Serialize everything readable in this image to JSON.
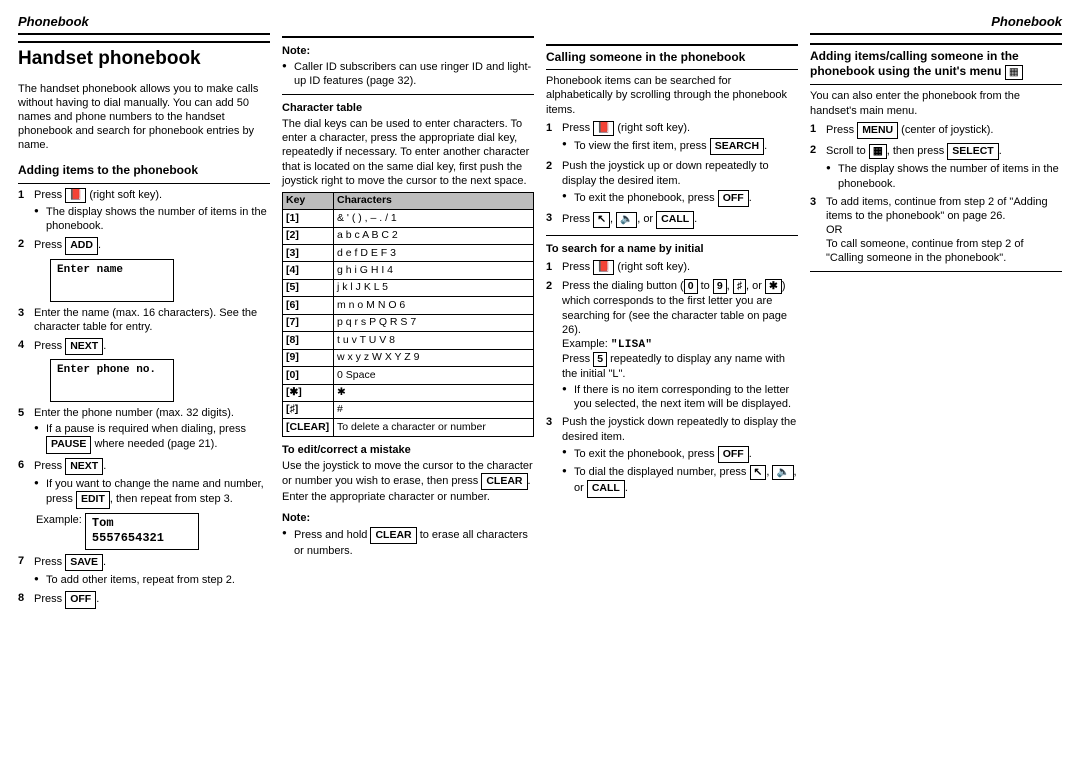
{
  "header": {
    "left": "Phonebook",
    "right": "Phonebook"
  },
  "col1": {
    "title": "Handset phonebook",
    "intro": "The handset phonebook allows you to make calls without having to dial manually. You can add 50 names and phone numbers to the handset phonebook and search for phonebook entries by name.",
    "sec1_title": "Adding items to the phonebook",
    "s1": "Press",
    "s1_key": "📕",
    "s1_after": "(right soft key).",
    "s1_b1": "The display shows the number of items in the phonebook.",
    "s2": "Press",
    "s2_key": "ADD",
    "box_enter_name": "Enter name",
    "s3": "Enter the name (max. 16 characters). See the character table for entry.",
    "s4": "Press",
    "s4_key": "NEXT",
    "box_enter_phone": "Enter phone no.",
    "s5": "Enter the phone number (max. 32 digits).",
    "s5_b1a": "If a pause is required when dialing, press",
    "s5_b1_key": "PAUSE",
    "s5_b1b": "where needed (page 21).",
    "s6": "Press",
    "s6_key": "NEXT",
    "s6_b1a": "If you want to change the name and number, press",
    "s6_b1_key": "EDIT",
    "s6_b1b": ", then repeat from step 3.",
    "s6_example_label": "Example:",
    "s6_example_name": "Tom",
    "s6_example_num": "5557654321",
    "s7": "Press",
    "s7_key": "SAVE",
    "s7_b1": "To add other items, repeat from step 2.",
    "s8": "Press",
    "s8_key": "OFF"
  },
  "col2": {
    "note_label": "Note:",
    "note_b1": "Caller ID subscribers can use ringer ID and light-up ID features (page 32).",
    "chartable_title": "Character table",
    "chartable_intro": "The dial keys can be used to enter characters. To enter a character, press the appropriate dial key, repeatedly if necessary. To enter another character that is located on the same dial key, first push the joystick right to move the cursor to the next space.",
    "th_key": "Key",
    "th_chars": "Characters",
    "rows": [
      {
        "k": "[1]",
        "c": "&  '  (  )  ,  –  .  /  1"
      },
      {
        "k": "[2]",
        "c": "a  b  c  A  B  C  2"
      },
      {
        "k": "[3]",
        "c": "d  e  f  D  E  F  3"
      },
      {
        "k": "[4]",
        "c": "g  h  i  G  H  I  4"
      },
      {
        "k": "[5]",
        "c": "j  k  l  J  K  L  5"
      },
      {
        "k": "[6]",
        "c": "m  n  o  M  N  O  6"
      },
      {
        "k": "[7]",
        "c": "p  q  r  s  P  Q  R  S  7"
      },
      {
        "k": "[8]",
        "c": "t  u  v  T  U  V  8"
      },
      {
        "k": "[9]",
        "c": "w  x  y  z  W  X  Y  Z  9"
      },
      {
        "k": "[0]",
        "c": "0  Space"
      },
      {
        "k": "[✱]",
        "c": "✱"
      },
      {
        "k": "[♯]",
        "c": "#"
      },
      {
        "k": "[CLEAR]",
        "c": "To delete a character or number"
      }
    ],
    "edit_title": "To edit/correct a mistake",
    "edit_body_a": "Use the joystick to move the cursor to the character or number you wish to erase, then press",
    "edit_key": "CLEAR",
    "edit_body_b": ". Enter the appropriate character or number.",
    "note2_label": "Note:",
    "note2_b1a": "Press and hold",
    "note2_key": "CLEAR",
    "note2_b1b": "to erase all characters or numbers."
  },
  "col3": {
    "title": "Calling someone in the phonebook",
    "intro": "Phonebook items can be searched for alphabetically by scrolling through the phonebook items.",
    "s1": "Press",
    "s1_key": "📕",
    "s1_after": "(right soft key).",
    "s1_b1a": "To view the first item, press",
    "s1_b1_key": "SEARCH",
    "s2": "Push the joystick up or down repeatedly to display the desired item.",
    "s2_b1a": "To exit the phonebook, press",
    "s2_b1_key": "OFF",
    "s3": "Press",
    "s3_k1": "↖",
    "s3_k2": "🔈",
    "s3_or": ", or",
    "s3_k3": "CALL",
    "search_title": "To search for a name by initial",
    "r1": "Press",
    "r1_key": "📕",
    "r1_after": "(right soft key).",
    "r2a": "Press the dialing button (",
    "r2_k0": "0",
    "r2_to": " to ",
    "r2_k9": "9",
    "r2b": ",",
    "r2_kH": "♯",
    "r2_or": ", or",
    "r2_kS": "✱",
    "r2c": ") which corresponds to the first letter you are searching for (see the character table on page 26).",
    "r2_example_label": "Example:",
    "r2_example": "\"LISA\"",
    "r2d_a": "Press",
    "r2d_key": "5",
    "r2d_b": "repeatedly to display any name with the initial \"L\".",
    "r2_b1": "If there is no item corresponding to the letter you selected, the next item will be displayed.",
    "r3": "Push the joystick down repeatedly to display the desired item.",
    "r3_b1a": "To exit the phonebook, press",
    "r3_b1_key": "OFF",
    "r3_b2a": "To dial the displayed number, press",
    "r3_b2_k1": "↖",
    "r3_b2_k2": "🔈",
    "r3_b2_or": ", or",
    "r3_b2_k3": "CALL"
  },
  "col4": {
    "title": "Adding items/calling someone in the phonebook using the unit's menu",
    "menu_icon": "▦",
    "intro": "You can also enter the phonebook from the handset's main menu.",
    "s1": "Press",
    "s1_key": "MENU",
    "s1_after": "(center of joystick).",
    "s2a": "Scroll to",
    "s2_icon": "▦",
    "s2b": ", then press",
    "s2_key": "SELECT",
    "s2_b1": "The display shows the number of items in the phonebook.",
    "s3": "To add items, continue from step 2 of \"Adding items to the phonebook\" on page 26.",
    "s3_or": "OR",
    "s3b": "To call someone, continue from step 2 of \"Calling someone in the phonebook\"."
  }
}
